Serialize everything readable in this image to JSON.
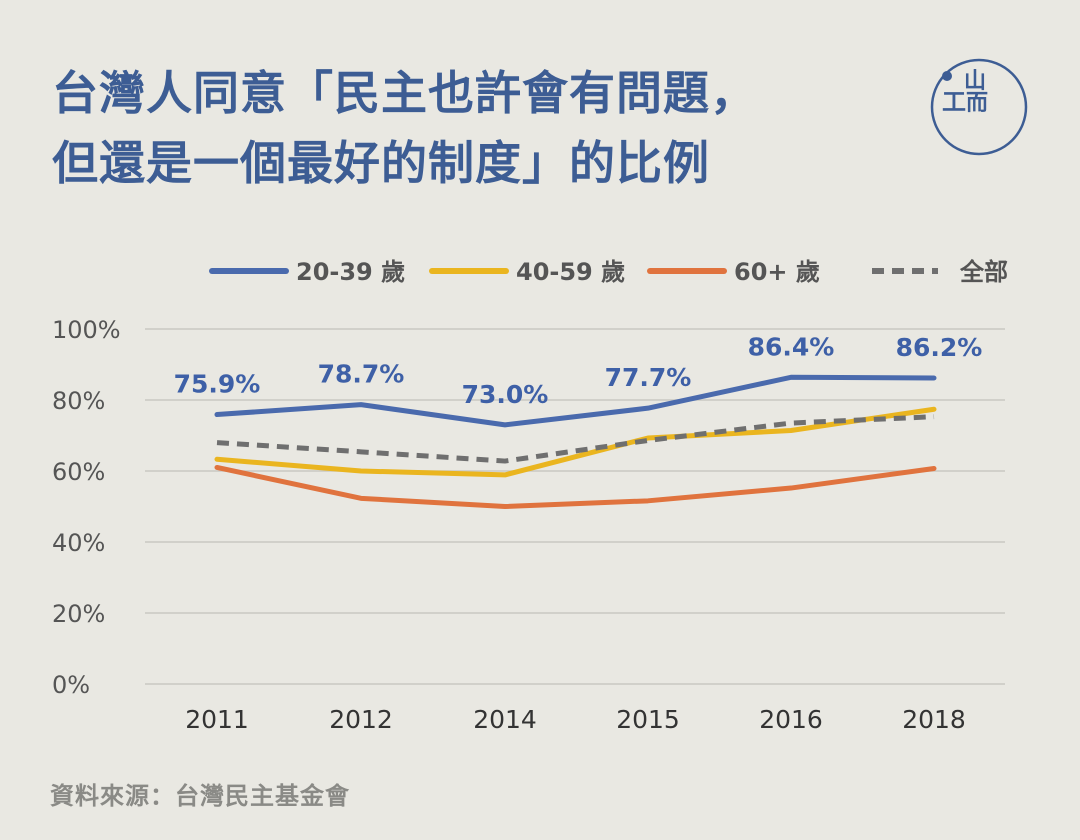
{
  "header": {
    "title_line1": "台灣人同意「民主也許會有問題，",
    "title_line2": "但還是一個最好的制度」的比例"
  },
  "logo": {
    "label_top": "山",
    "label_left": "工",
    "label_right": "而"
  },
  "source": "資料來源：台灣民主基金會",
  "colors": {
    "s1": "#4a6aad",
    "s2": "#eab51f",
    "s3": "#e0733e",
    "s4": "#6f6f6f",
    "grid": "#c9c8c2"
  },
  "chart_data": {
    "type": "line",
    "title": "台灣人同意「民主也許會有問題，但還是一個最好的制度」的比例",
    "categories": [
      "2011",
      "2012",
      "2014",
      "2015",
      "2016",
      "2018"
    ],
    "yticks": [
      "100%",
      "80%",
      "60%",
      "40%",
      "20%",
      "0%"
    ],
    "ylim": [
      0,
      100
    ],
    "legend_position": "top",
    "grid": true,
    "series": [
      {
        "name": "20-39 歲",
        "values": [
          75.9,
          78.7,
          73.0,
          77.7,
          86.4,
          86.2
        ],
        "labels": [
          "75.9%",
          "78.7%",
          "73.0%",
          "77.7%",
          "86.4%",
          "86.2%"
        ],
        "style": "solid",
        "color": "#4a6aad"
      },
      {
        "name": "40-59 歲",
        "values": [
          63.3,
          60.0,
          58.9,
          69.3,
          71.4,
          77.4
        ],
        "style": "solid",
        "color": "#eab51f"
      },
      {
        "name": "60+ 歲",
        "values": [
          61.0,
          52.3,
          50.0,
          51.6,
          55.2,
          60.7
        ],
        "style": "solid",
        "color": "#e0733e"
      },
      {
        "name": "全部",
        "values": [
          68.0,
          65.4,
          62.8,
          68.6,
          73.5,
          75.3
        ],
        "style": "dashed",
        "color": "#6f6f6f"
      }
    ]
  }
}
